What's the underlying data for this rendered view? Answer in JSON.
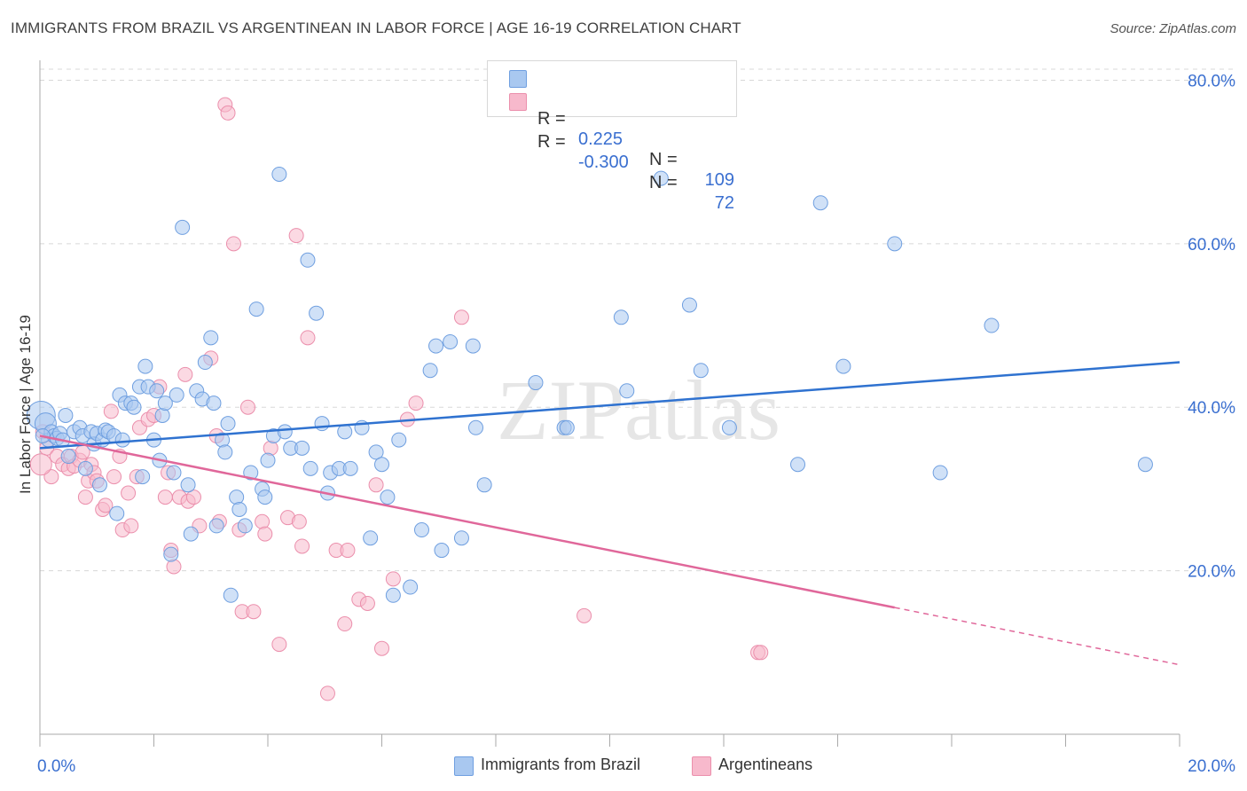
{
  "header": {
    "title": "IMMIGRANTS FROM BRAZIL VS ARGENTINEAN IN LABOR FORCE | AGE 16-19 CORRELATION CHART",
    "source": "Source: ZipAtlas.com"
  },
  "watermark": "ZIPatlas",
  "legend_top": {
    "rows": [
      {
        "r_label": "R =",
        "r_value": "0.225",
        "n_label": "N =",
        "n_value": "109"
      },
      {
        "r_label": "R =",
        "r_value": "-0.300",
        "n_label": "N =",
        "n_value": "72"
      }
    ]
  },
  "legend_bottom": {
    "items": [
      {
        "label": "Immigrants from Brazil"
      },
      {
        "label": "Argentineans"
      }
    ]
  },
  "colors": {
    "brazil_fill": "#a9c8f0",
    "brazil_stroke": "#6f9fe0",
    "brazil_line": "#2f72d0",
    "arg_fill": "#f7b9cc",
    "arg_stroke": "#eb8fac",
    "arg_line": "#e0679a",
    "tick_label": "#3a6fd0",
    "grid": "#d8d8d8"
  },
  "chart_data": {
    "type": "scatter",
    "title": "IMMIGRANTS FROM BRAZIL VS ARGENTINEAN IN LABOR FORCE | AGE 16-19 CORRELATION CHART",
    "xlabel": "",
    "ylabel": "In Labor Force | Age 16-19",
    "xlim": [
      0,
      20
    ],
    "ylim": [
      0,
      82
    ],
    "x_tick_labels": [
      "0.0%",
      "20.0%"
    ],
    "y_ticks": [
      20,
      40,
      60,
      80
    ],
    "y_tick_labels": [
      "20.0%",
      "40.0%",
      "60.0%",
      "80.0%"
    ],
    "grid": true,
    "legend_position": "top-center",
    "series": [
      {
        "name": "Immigrants from Brazil",
        "r": 0.225,
        "n": 109,
        "trend": {
          "x": [
            0,
            20
          ],
          "y": [
            35.0,
            45.5
          ]
        },
        "points": [
          [
            0.02,
            39.0
          ],
          [
            0.1,
            38.0
          ],
          [
            0.15,
            36.0
          ],
          [
            0.2,
            37.0
          ],
          [
            0.25,
            36.5
          ],
          [
            0.3,
            36.2
          ],
          [
            0.35,
            36.8
          ],
          [
            0.4,
            36.0
          ],
          [
            0.45,
            39.0
          ],
          [
            0.5,
            34.0
          ],
          [
            0.6,
            37.0
          ],
          [
            0.7,
            37.5
          ],
          [
            0.75,
            36.5
          ],
          [
            0.8,
            32.5
          ],
          [
            0.9,
            37.0
          ],
          [
            0.95,
            35.5
          ],
          [
            1.0,
            36.8
          ],
          [
            1.05,
            30.5
          ],
          [
            1.1,
            36.0
          ],
          [
            1.15,
            37.2
          ],
          [
            1.2,
            37.0
          ],
          [
            1.3,
            36.5
          ],
          [
            1.35,
            27.0
          ],
          [
            1.4,
            41.5
          ],
          [
            1.45,
            36.0
          ],
          [
            1.5,
            40.5
          ],
          [
            1.6,
            40.5
          ],
          [
            1.65,
            40.0
          ],
          [
            1.75,
            42.5
          ],
          [
            1.8,
            31.5
          ],
          [
            1.85,
            45.0
          ],
          [
            1.9,
            42.5
          ],
          [
            2.0,
            36.0
          ],
          [
            2.05,
            42.0
          ],
          [
            2.1,
            33.5
          ],
          [
            2.15,
            39.0
          ],
          [
            2.2,
            40.5
          ],
          [
            2.3,
            22.0
          ],
          [
            2.35,
            32.0
          ],
          [
            2.4,
            41.5
          ],
          [
            2.5,
            62.0
          ],
          [
            2.6,
            30.5
          ],
          [
            2.65,
            24.5
          ],
          [
            2.75,
            42.0
          ],
          [
            2.85,
            41.0
          ],
          [
            2.9,
            45.5
          ],
          [
            3.0,
            48.5
          ],
          [
            3.05,
            40.5
          ],
          [
            3.1,
            25.5
          ],
          [
            3.2,
            36.0
          ],
          [
            3.25,
            34.5
          ],
          [
            3.3,
            38.0
          ],
          [
            3.35,
            17.0
          ],
          [
            3.45,
            29.0
          ],
          [
            3.5,
            27.5
          ],
          [
            3.6,
            25.5
          ],
          [
            3.7,
            32.0
          ],
          [
            3.8,
            52.0
          ],
          [
            3.9,
            30.0
          ],
          [
            3.95,
            29.0
          ],
          [
            4.0,
            33.5
          ],
          [
            4.1,
            36.5
          ],
          [
            4.2,
            68.5
          ],
          [
            4.3,
            37.0
          ],
          [
            4.4,
            35.0
          ],
          [
            4.6,
            35.0
          ],
          [
            4.7,
            58.0
          ],
          [
            4.75,
            32.5
          ],
          [
            4.85,
            51.5
          ],
          [
            4.95,
            38.0
          ],
          [
            5.05,
            29.5
          ],
          [
            5.1,
            32.0
          ],
          [
            5.25,
            32.5
          ],
          [
            5.35,
            37.0
          ],
          [
            5.45,
            32.5
          ],
          [
            5.65,
            37.5
          ],
          [
            5.8,
            24.0
          ],
          [
            5.9,
            34.5
          ],
          [
            6.0,
            33.0
          ],
          [
            6.1,
            29.0
          ],
          [
            6.2,
            17.0
          ],
          [
            6.3,
            36.0
          ],
          [
            6.5,
            18.0
          ],
          [
            6.7,
            25.0
          ],
          [
            6.85,
            44.5
          ],
          [
            6.95,
            47.5
          ],
          [
            7.05,
            22.5
          ],
          [
            7.2,
            48.0
          ],
          [
            7.4,
            24.0
          ],
          [
            7.6,
            47.5
          ],
          [
            7.65,
            37.5
          ],
          [
            7.8,
            30.5
          ],
          [
            8.7,
            43.0
          ],
          [
            9.2,
            37.5
          ],
          [
            9.25,
            37.5
          ],
          [
            10.2,
            51.0
          ],
          [
            10.3,
            42.0
          ],
          [
            10.9,
            68.0
          ],
          [
            11.4,
            52.5
          ],
          [
            11.6,
            44.5
          ],
          [
            12.1,
            37.5
          ],
          [
            13.3,
            33.0
          ],
          [
            13.7,
            65.0
          ],
          [
            14.1,
            45.0
          ],
          [
            15.0,
            60.0
          ],
          [
            15.8,
            32.0
          ],
          [
            16.7,
            50.0
          ],
          [
            19.4,
            33.0
          ],
          [
            0.05,
            36.5
          ]
        ]
      },
      {
        "name": "Argentineans",
        "r": -0.3,
        "n": 72,
        "trend": {
          "x": [
            0,
            15.0
          ],
          "y": [
            36.5,
            15.5
          ]
        },
        "trend_dashed": {
          "x": [
            15.0,
            20
          ],
          "y": [
            15.5,
            8.5
          ]
        },
        "points": [
          [
            0.05,
            37.0
          ],
          [
            0.12,
            35.0
          ],
          [
            0.2,
            31.5
          ],
          [
            0.3,
            34.0
          ],
          [
            0.4,
            33.0
          ],
          [
            0.5,
            32.5
          ],
          [
            0.55,
            34.0
          ],
          [
            0.6,
            32.8
          ],
          [
            0.7,
            33.5
          ],
          [
            0.75,
            34.5
          ],
          [
            0.8,
            29.0
          ],
          [
            0.85,
            31.0
          ],
          [
            0.9,
            33.0
          ],
          [
            0.95,
            32.0
          ],
          [
            1.0,
            31.0
          ],
          [
            1.1,
            27.5
          ],
          [
            1.15,
            28.0
          ],
          [
            1.25,
            39.5
          ],
          [
            1.3,
            31.5
          ],
          [
            1.4,
            34.0
          ],
          [
            1.45,
            25.0
          ],
          [
            1.55,
            29.5
          ],
          [
            1.6,
            25.5
          ],
          [
            1.7,
            31.5
          ],
          [
            1.75,
            37.5
          ],
          [
            1.9,
            38.5
          ],
          [
            2.0,
            39.0
          ],
          [
            2.1,
            42.5
          ],
          [
            2.2,
            29.0
          ],
          [
            2.25,
            32.0
          ],
          [
            2.3,
            22.5
          ],
          [
            2.35,
            20.5
          ],
          [
            2.45,
            29.0
          ],
          [
            2.55,
            44.0
          ],
          [
            2.6,
            28.5
          ],
          [
            2.7,
            29.0
          ],
          [
            2.8,
            25.5
          ],
          [
            3.0,
            46.0
          ],
          [
            3.1,
            36.5
          ],
          [
            3.15,
            26.0
          ],
          [
            3.4,
            60.0
          ],
          [
            3.5,
            25.0
          ],
          [
            3.55,
            15.0
          ],
          [
            3.65,
            40.0
          ],
          [
            3.75,
            15.0
          ],
          [
            3.9,
            26.0
          ],
          [
            3.95,
            24.5
          ],
          [
            4.05,
            35.0
          ],
          [
            4.2,
            11.0
          ],
          [
            4.35,
            26.5
          ],
          [
            4.5,
            61.0
          ],
          [
            4.55,
            26.0
          ],
          [
            4.6,
            23.0
          ],
          [
            4.7,
            48.5
          ],
          [
            5.05,
            5.0
          ],
          [
            5.2,
            22.5
          ],
          [
            5.35,
            13.5
          ],
          [
            5.4,
            22.5
          ],
          [
            5.6,
            16.5
          ],
          [
            5.75,
            16.0
          ],
          [
            5.9,
            30.5
          ],
          [
            6.0,
            10.5
          ],
          [
            6.2,
            19.0
          ],
          [
            6.45,
            38.5
          ],
          [
            6.6,
            40.5
          ],
          [
            7.4,
            51.0
          ],
          [
            9.55,
            14.5
          ],
          [
            12.6,
            10.0
          ],
          [
            12.65,
            10.0
          ],
          [
            3.25,
            77.0
          ],
          [
            3.3,
            76.0
          ],
          [
            0.02,
            33.0
          ]
        ]
      }
    ]
  }
}
